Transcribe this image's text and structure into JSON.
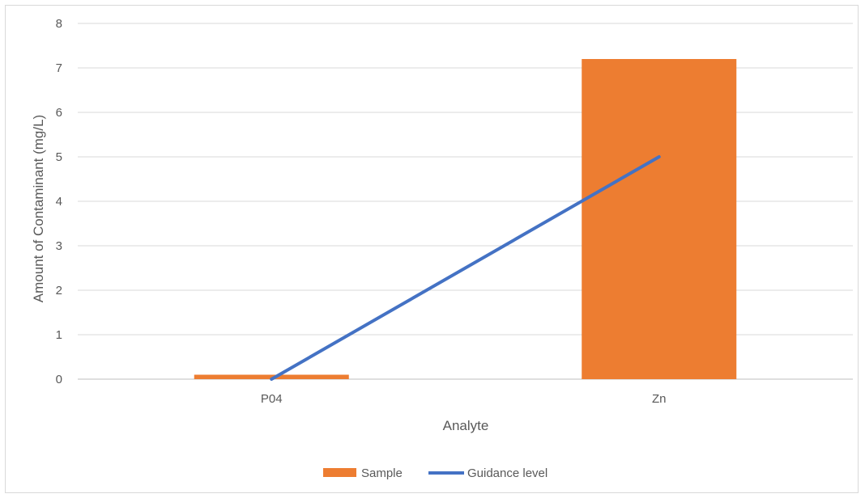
{
  "chart_data": {
    "type": "bar",
    "categories": [
      "P04",
      "Zn"
    ],
    "series": [
      {
        "name": "Sample",
        "type": "bar",
        "values": [
          0.1,
          7.2
        ],
        "color": "#ED7D31"
      },
      {
        "name": "Guidance level",
        "type": "line",
        "values": [
          0,
          5
        ],
        "color": "#4472C4"
      }
    ],
    "xlabel": "Analyte",
    "ylabel": "Amount of Contaminant (mg/L)",
    "ylim": [
      0,
      8
    ],
    "yticks": [
      0,
      1,
      2,
      3,
      4,
      5,
      6,
      7,
      8
    ],
    "grid": true,
    "legend_position": "bottom"
  }
}
